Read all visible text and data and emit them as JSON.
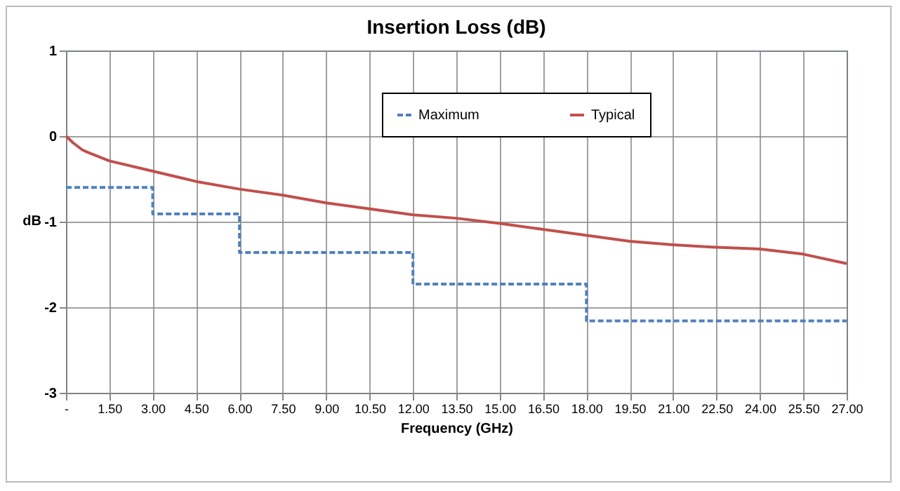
{
  "chart_data": {
    "type": "line",
    "title": "Insertion Loss (dB)",
    "xlabel": "Frequency (GHz)",
    "ylabel": "dB",
    "xlim": [
      0,
      27
    ],
    "ylim": [
      -3,
      1
    ],
    "xticks": [
      {
        "value": 0,
        "label": "-"
      },
      {
        "value": 1.5,
        "label": "1.50"
      },
      {
        "value": 3,
        "label": "3.00"
      },
      {
        "value": 4.5,
        "label": "4.50"
      },
      {
        "value": 6,
        "label": "6.00"
      },
      {
        "value": 7.5,
        "label": "7.50"
      },
      {
        "value": 9,
        "label": "9.00"
      },
      {
        "value": 10.5,
        "label": "10.50"
      },
      {
        "value": 12,
        "label": "12.00"
      },
      {
        "value": 13.5,
        "label": "13.50"
      },
      {
        "value": 15,
        "label": "15.00"
      },
      {
        "value": 16.5,
        "label": "16.50"
      },
      {
        "value": 18,
        "label": "18.00"
      },
      {
        "value": 19.5,
        "label": "19.50"
      },
      {
        "value": 21,
        "label": "21.00"
      },
      {
        "value": 22.5,
        "label": "22.50"
      },
      {
        "value": 24,
        "label": "24.00"
      },
      {
        "value": 25.5,
        "label": "25.50"
      },
      {
        "value": 27,
        "label": "27.00"
      }
    ],
    "yticks": [
      -3,
      -2,
      -1,
      0,
      1
    ],
    "grid": true,
    "legend": "top",
    "series": [
      {
        "name": "Maximum",
        "type": "step",
        "color": "#4f81bd",
        "line_style": "dashed",
        "x": [
          0,
          3,
          6,
          12,
          18,
          27
        ],
        "values": [
          -0.6,
          -0.91,
          -1.36,
          -1.73,
          -2.16,
          -2.16
        ]
      },
      {
        "name": "Typical",
        "type": "line",
        "color": "#c0504d",
        "line_style": "solid",
        "x": [
          0,
          0.25,
          0.56,
          0.75,
          1.5,
          3,
          4.5,
          6,
          7.5,
          9,
          10.5,
          12,
          13.5,
          15,
          16.5,
          18,
          19.5,
          21,
          22.5,
          24,
          25.5,
          27
        ],
        "values": [
          0,
          -0.08,
          -0.16,
          -0.19,
          -0.29,
          -0.41,
          -0.53,
          -0.62,
          -0.69,
          -0.78,
          -0.85,
          -0.92,
          -0.96,
          -1.02,
          -1.09,
          -1.16,
          -1.23,
          -1.27,
          -1.3,
          -1.32,
          -1.38,
          -1.49
        ]
      }
    ]
  }
}
